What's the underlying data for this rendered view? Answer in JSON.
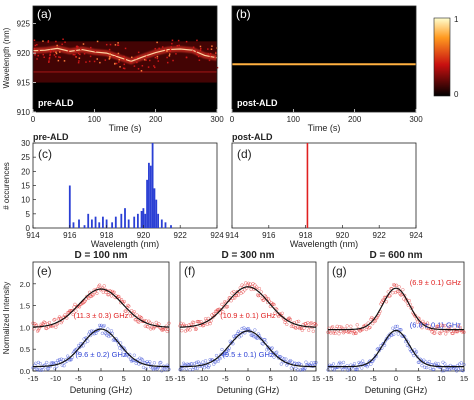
{
  "chart_data": [
    {
      "panel": "(a)",
      "type": "heatmap",
      "tag": "pre-ALD",
      "xlabel": "Time (s)",
      "ylabel": "Wavelength (nm)",
      "xlim": [
        0,
        300
      ],
      "ylim": [
        910,
        928
      ],
      "xticks": [
        "0",
        "100",
        "200",
        "300"
      ],
      "yticks": [
        "910",
        "915",
        "920",
        "925"
      ],
      "emission_center_nm": [
        [
          0,
          920.4
        ],
        [
          20,
          920.5
        ],
        [
          40,
          920.8
        ],
        [
          60,
          920.3
        ],
        [
          80,
          920.6
        ],
        [
          100,
          920.2
        ],
        [
          120,
          920.0
        ],
        [
          140,
          919.3
        ],
        [
          160,
          918.6
        ],
        [
          180,
          919.4
        ],
        [
          200,
          920.1
        ],
        [
          220,
          920.6
        ],
        [
          240,
          920.7
        ],
        [
          260,
          920.5
        ],
        [
          280,
          919.6
        ],
        [
          300,
          919.2
        ]
      ],
      "secondary_line_nm": 916.8,
      "spectral_range_nm": [
        915.0,
        922.0
      ]
    },
    {
      "panel": "(b)",
      "type": "heatmap",
      "tag": "post-ALD",
      "xlabel": "Time (s)",
      "ylabel": "",
      "xlim": [
        0,
        300
      ],
      "ylim": [
        910,
        928
      ],
      "xticks": [
        "0",
        "100",
        "200",
        "300"
      ],
      "yticks": [
        "910",
        "915",
        "920",
        "925"
      ],
      "emission_line_nm": 918.1,
      "colorbar": {
        "min": 0,
        "max": 1,
        "ticks": [
          "0",
          "1"
        ]
      }
    },
    {
      "panel": "(c)",
      "type": "bar",
      "tag": "pre-ALD",
      "xlabel": "Wavelength (nm)",
      "ylabel": "# occurences",
      "xlim": [
        914,
        924
      ],
      "ylim": [
        0,
        30
      ],
      "xticks": [
        "914",
        "916",
        "918",
        "920",
        "922",
        "924"
      ],
      "yticks": [
        "0",
        "5",
        "10",
        "15",
        "20",
        "25",
        "30"
      ],
      "x": [
        916.0,
        916.2,
        916.5,
        916.8,
        917.0,
        917.2,
        917.4,
        917.6,
        917.8,
        918.0,
        918.3,
        918.5,
        918.8,
        919.0,
        919.2,
        919.5,
        919.7,
        919.9,
        920.0,
        920.1,
        920.2,
        920.3,
        920.4,
        920.5,
        920.6,
        920.7,
        920.8,
        921.0,
        921.2,
        921.5
      ],
      "values": [
        15,
        2,
        3,
        1,
        5,
        3,
        4,
        2,
        4,
        3,
        2,
        4,
        5,
        7,
        3,
        4,
        5,
        6,
        7,
        5,
        17,
        23,
        22,
        30,
        14,
        10,
        5,
        3,
        2,
        1
      ]
    },
    {
      "panel": "(d)",
      "type": "bar",
      "tag": "post-ALD",
      "xlabel": "Wavelength (nm)",
      "ylabel": "",
      "xlim": [
        914,
        924
      ],
      "ylim": [
        0,
        30
      ],
      "xticks": [
        "914",
        "916",
        "918",
        "920",
        "922",
        "924"
      ],
      "line_nm": 918.1
    },
    {
      "panel": "(e)",
      "type": "scatter",
      "title": "D = 100 nm",
      "xlabel": "Detuning (GHz)",
      "ylabel": "Normalized Intensity",
      "xlim": [
        -15,
        15
      ],
      "ylim": [
        0,
        2.5
      ],
      "xticks": [
        "-15",
        "-10",
        "-5",
        "0",
        "5",
        "10",
        "15"
      ],
      "yticks": [
        "0.0",
        "0.5",
        "1.0",
        "1.5",
        "2.0"
      ],
      "series": [
        {
          "label": "(11.3 ± 0.3) GHz",
          "color": "#e02020",
          "fwhm_ghz": 11.3,
          "offset": 1.0,
          "amplitude": 0.88
        },
        {
          "label": "(9.6 ± 0.2) GHz",
          "color": "#2a3fd4",
          "fwhm_ghz": 9.6,
          "offset": 0.1,
          "amplitude": 0.86
        }
      ]
    },
    {
      "panel": "(f)",
      "type": "scatter",
      "title": "D = 300 nm",
      "xlabel": "Detuning (GHz)",
      "ylabel": "",
      "xlim": [
        -15,
        15
      ],
      "ylim": [
        0,
        2.5
      ],
      "xticks": [
        "-15",
        "-10",
        "-5",
        "0",
        "5",
        "10",
        "15"
      ],
      "series": [
        {
          "label": "(10.9 ± 0.1) GHz",
          "color": "#e02020",
          "fwhm_ghz": 10.9,
          "offset": 1.0,
          "amplitude": 0.93
        },
        {
          "label": "(9.5 ± 0.1) GHz",
          "color": "#2a3fd4",
          "fwhm_ghz": 9.5,
          "offset": 0.1,
          "amplitude": 0.82
        }
      ]
    },
    {
      "panel": "(g)",
      "type": "scatter",
      "title": "D = 600 nm",
      "xlabel": "Detuning (GHz)",
      "ylabel": "",
      "xlim": [
        -15,
        15
      ],
      "ylim": [
        0,
        2.5
      ],
      "xticks": [
        "-15",
        "-10",
        "-5",
        "0",
        "5",
        "10",
        "15"
      ],
      "series": [
        {
          "label": "(6.9 ± 0.1) GHz",
          "color": "#e02020",
          "fwhm_ghz": 6.9,
          "offset": 0.95,
          "amplitude": 0.95
        },
        {
          "label": "(6.8 ± 0.1) GHz",
          "color": "#2a3fd4",
          "fwhm_ghz": 6.8,
          "offset": 0.1,
          "amplitude": 0.83
        }
      ]
    }
  ]
}
